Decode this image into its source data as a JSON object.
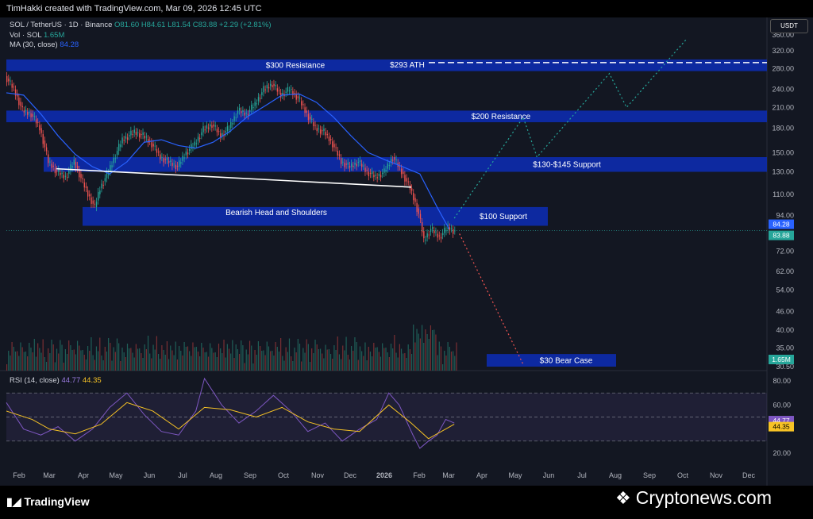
{
  "header": {
    "title": "TimHakki created with TradingView.com, Mar 09, 2026 12:45 UTC"
  },
  "legend": {
    "symbol": "SOL / TetherUS · 1D · Binance",
    "ohlc": "O81.60 H84.61 L81.54 C83.88 +2.29 (+2.81%)",
    "vol_label": "Vol · SOL",
    "vol_value": "1.65M",
    "ma_label": "MA (30, close)",
    "ma_value": "84.28",
    "rsi_label": "RSI (14, close)",
    "rsi_value": "44.77",
    "rsi_ma_value": "44.35"
  },
  "currency_button": "USDT",
  "colors": {
    "background": "#131722",
    "up": "#26a69a",
    "down": "#ef5350",
    "ma": "#2962ff",
    "zone": "#0d2aa8",
    "rsi": "#7e57c2",
    "rsi_ma": "#f7c325",
    "bull_path": "#26a69a",
    "bear_path": "#ef5350"
  },
  "chart_data": {
    "type": "candlestick",
    "symbol": "SOL/USDT",
    "price_scale": "log",
    "price_ticks": [
      "360.00",
      "320.00",
      "280.00",
      "240.00",
      "210.00",
      "180.00",
      "150.00",
      "130.00",
      "110.00",
      "94.00",
      "72.00",
      "62.00",
      "54.00",
      "46.00",
      "40.00",
      "35.00",
      "30.50"
    ],
    "x_ticks": [
      "Feb",
      "Mar",
      "Apr",
      "May",
      "Jun",
      "Jul",
      "Aug",
      "Sep",
      "Oct",
      "Nov",
      "Dec",
      "2026",
      "Feb",
      "Mar",
      "Apr",
      "May",
      "Jun",
      "Jul",
      "Aug",
      "Sep",
      "Oct",
      "Nov",
      "Dec"
    ],
    "rsi_ticks": [
      "80.00",
      "60.00",
      "20.00"
    ],
    "price_labels": {
      "ma": "84.28",
      "close": "83.88",
      "volume": "1.65M",
      "rsi": "44.77",
      "rsi_ma": "44.35"
    },
    "zones": [
      {
        "label": "$300 Resistance",
        "low": 275,
        "high": 300
      },
      {
        "label": "$200 Resistance",
        "low": 188,
        "high": 205
      },
      {
        "label": "$130-$145 Support",
        "low": 130,
        "high": 145
      },
      {
        "label": "$100 Support",
        "low": 87,
        "high": 100
      },
      {
        "label": "$30 Bear Case",
        "low": 30.5,
        "high": 33.5
      }
    ],
    "ath": {
      "label": "$293 ATH",
      "value": 293
    },
    "pattern_label": "Bearish Head and Shoulders",
    "neckline": [
      {
        "t": 29,
        "p": 133
      },
      {
        "t": 235,
        "p": 116
      }
    ],
    "ma_series": [
      {
        "t": 0,
        "p": 234
      },
      {
        "t": 10,
        "p": 230
      },
      {
        "t": 20,
        "p": 200
      },
      {
        "t": 30,
        "p": 170
      },
      {
        "t": 40,
        "p": 148
      },
      {
        "t": 50,
        "p": 135
      },
      {
        "t": 60,
        "p": 128
      },
      {
        "t": 70,
        "p": 140
      },
      {
        "t": 80,
        "p": 162
      },
      {
        "t": 90,
        "p": 165
      },
      {
        "t": 100,
        "p": 158
      },
      {
        "t": 110,
        "p": 155
      },
      {
        "t": 120,
        "p": 162
      },
      {
        "t": 130,
        "p": 176
      },
      {
        "t": 140,
        "p": 196
      },
      {
        "t": 150,
        "p": 212
      },
      {
        "t": 160,
        "p": 230
      },
      {
        "t": 170,
        "p": 232
      },
      {
        "t": 180,
        "p": 218
      },
      {
        "t": 190,
        "p": 195
      },
      {
        "t": 200,
        "p": 170
      },
      {
        "t": 210,
        "p": 150
      },
      {
        "t": 220,
        "p": 142
      },
      {
        "t": 230,
        "p": 135
      },
      {
        "t": 240,
        "p": 128
      },
      {
        "t": 250,
        "p": 100
      },
      {
        "t": 257,
        "p": 85
      }
    ],
    "price_path": [
      {
        "t": 0,
        "p": 265
      },
      {
        "t": 5,
        "p": 240
      },
      {
        "t": 10,
        "p": 205
      },
      {
        "t": 15,
        "p": 200
      },
      {
        "t": 20,
        "p": 180
      },
      {
        "t": 25,
        "p": 140
      },
      {
        "t": 30,
        "p": 130
      },
      {
        "t": 35,
        "p": 125
      },
      {
        "t": 40,
        "p": 140
      },
      {
        "t": 45,
        "p": 120
      },
      {
        "t": 48,
        "p": 110
      },
      {
        "t": 52,
        "p": 100
      },
      {
        "t": 55,
        "p": 115
      },
      {
        "t": 60,
        "p": 130
      },
      {
        "t": 68,
        "p": 165
      },
      {
        "t": 75,
        "p": 175
      },
      {
        "t": 80,
        "p": 170
      },
      {
        "t": 85,
        "p": 160
      },
      {
        "t": 90,
        "p": 145
      },
      {
        "t": 95,
        "p": 140
      },
      {
        "t": 100,
        "p": 135
      },
      {
        "t": 105,
        "p": 150
      },
      {
        "t": 110,
        "p": 160
      },
      {
        "t": 115,
        "p": 178
      },
      {
        "t": 120,
        "p": 185
      },
      {
        "t": 125,
        "p": 170
      },
      {
        "t": 130,
        "p": 180
      },
      {
        "t": 135,
        "p": 205
      },
      {
        "t": 140,
        "p": 200
      },
      {
        "t": 145,
        "p": 215
      },
      {
        "t": 150,
        "p": 240
      },
      {
        "t": 155,
        "p": 250
      },
      {
        "t": 160,
        "p": 230
      },
      {
        "t": 165,
        "p": 240
      },
      {
        "t": 170,
        "p": 225
      },
      {
        "t": 175,
        "p": 200
      },
      {
        "t": 180,
        "p": 180
      },
      {
        "t": 185,
        "p": 175
      },
      {
        "t": 190,
        "p": 160
      },
      {
        "t": 195,
        "p": 140
      },
      {
        "t": 200,
        "p": 135
      },
      {
        "t": 205,
        "p": 140
      },
      {
        "t": 210,
        "p": 130
      },
      {
        "t": 215,
        "p": 125
      },
      {
        "t": 220,
        "p": 130
      },
      {
        "t": 225,
        "p": 145
      },
      {
        "t": 230,
        "p": 130
      },
      {
        "t": 235,
        "p": 115
      },
      {
        "t": 240,
        "p": 95
      },
      {
        "t": 243,
        "p": 78
      },
      {
        "t": 247,
        "p": 85
      },
      {
        "t": 252,
        "p": 80
      },
      {
        "t": 257,
        "p": 86
      },
      {
        "t": 260,
        "p": 84
      }
    ],
    "bull_projection": [
      {
        "t": 260,
        "p": 92
      },
      {
        "t": 300,
        "p": 195
      },
      {
        "t": 308,
        "p": 145
      },
      {
        "t": 350,
        "p": 270
      },
      {
        "t": 360,
        "p": 210
      },
      {
        "t": 395,
        "p": 350
      }
    ],
    "bear_projection": [
      {
        "t": 263,
        "p": 82
      },
      {
        "t": 300,
        "p": 31
      }
    ],
    "rsi_series": [
      {
        "t": 0,
        "p": 62
      },
      {
        "t": 10,
        "p": 40
      },
      {
        "t": 20,
        "p": 35
      },
      {
        "t": 30,
        "p": 42
      },
      {
        "t": 40,
        "p": 30
      },
      {
        "t": 50,
        "p": 40
      },
      {
        "t": 60,
        "p": 58
      },
      {
        "t": 70,
        "p": 70
      },
      {
        "t": 80,
        "p": 52
      },
      {
        "t": 90,
        "p": 38
      },
      {
        "t": 100,
        "p": 35
      },
      {
        "t": 110,
        "p": 55
      },
      {
        "t": 115,
        "p": 82
      },
      {
        "t": 125,
        "p": 60
      },
      {
        "t": 135,
        "p": 45
      },
      {
        "t": 145,
        "p": 55
      },
      {
        "t": 155,
        "p": 68
      },
      {
        "t": 165,
        "p": 55
      },
      {
        "t": 175,
        "p": 38
      },
      {
        "t": 185,
        "p": 45
      },
      {
        "t": 195,
        "p": 30
      },
      {
        "t": 205,
        "p": 40
      },
      {
        "t": 215,
        "p": 48
      },
      {
        "t": 222,
        "p": 70
      },
      {
        "t": 228,
        "p": 60
      },
      {
        "t": 236,
        "p": 35
      },
      {
        "t": 240,
        "p": 24
      },
      {
        "t": 245,
        "p": 30
      },
      {
        "t": 250,
        "p": 35
      },
      {
        "t": 255,
        "p": 48
      },
      {
        "t": 260,
        "p": 45
      }
    ],
    "rsi_ma_series": [
      {
        "t": 0,
        "p": 55
      },
      {
        "t": 15,
        "p": 48
      },
      {
        "t": 25,
        "p": 40
      },
      {
        "t": 40,
        "p": 36
      },
      {
        "t": 55,
        "p": 44
      },
      {
        "t": 70,
        "p": 62
      },
      {
        "t": 85,
        "p": 55
      },
      {
        "t": 100,
        "p": 40
      },
      {
        "t": 115,
        "p": 58
      },
      {
        "t": 130,
        "p": 56
      },
      {
        "t": 145,
        "p": 50
      },
      {
        "t": 160,
        "p": 58
      },
      {
        "t": 175,
        "p": 46
      },
      {
        "t": 190,
        "p": 40
      },
      {
        "t": 205,
        "p": 38
      },
      {
        "t": 222,
        "p": 60
      },
      {
        "t": 235,
        "p": 45
      },
      {
        "t": 245,
        "p": 32
      },
      {
        "t": 260,
        "p": 44
      }
    ]
  },
  "footer": {
    "tv_logo": "TradingView",
    "cn_logo": "Cryptonews.com",
    "cn_icon": "cryptonews-diamond-icon"
  }
}
